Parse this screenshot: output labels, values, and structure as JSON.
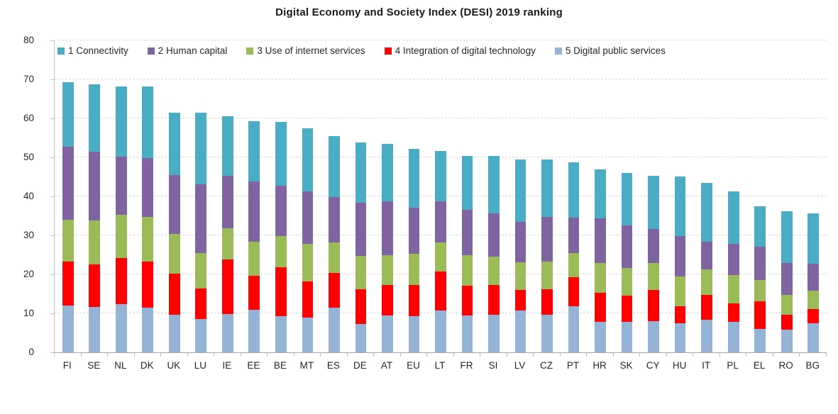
{
  "title": "Digital Economy and Society Index (DESI) 2019 ranking",
  "colors": {
    "connectivity": "#4BACC6",
    "human_capital": "#8064A2",
    "use_of_internet_services": "#9BBB59",
    "integration_of_digital_technology": "#FF0000",
    "digital_public_services": "#95B3D7",
    "gridline": "#D9D9D9",
    "axis_line": "#A6A6A6",
    "text": "#262626"
  },
  "chart_data": {
    "type": "bar",
    "stacked": true,
    "title": "Digital Economy and Society Index (DESI) 2019 ranking",
    "xlabel": "",
    "ylabel": "",
    "ylim": [
      0,
      80
    ],
    "yticks": [
      0,
      10,
      20,
      30,
      40,
      50,
      60,
      70,
      80
    ],
    "grid": "horizontal-dashed",
    "legend_position": "top",
    "categories": [
      "FI",
      "SE",
      "NL",
      "DK",
      "UK",
      "LU",
      "IE",
      "EE",
      "BE",
      "MT",
      "ES",
      "DE",
      "AT",
      "EU",
      "LT",
      "FR",
      "SI",
      "LV",
      "CZ",
      "PT",
      "HR",
      "SK",
      "CY",
      "HU",
      "IT",
      "PL",
      "EL",
      "RO",
      "BG"
    ],
    "series": [
      {
        "name": "1 Connectivity",
        "color": "#4BACC6",
        "values": [
          16.5,
          17.2,
          18.0,
          18.3,
          16.0,
          18.5,
          15.3,
          15.4,
          16.2,
          16.2,
          15.7,
          15.4,
          14.8,
          15.1,
          12.8,
          13.9,
          14.8,
          16.1,
          14.8,
          14.1,
          12.6,
          13.3,
          13.7,
          15.2,
          15.0,
          13.4,
          10.3,
          13.3,
          12.9
        ]
      },
      {
        "name": "2 Human capital",
        "color": "#8064A2",
        "values": [
          18.8,
          17.7,
          15.0,
          15.0,
          15.2,
          17.5,
          13.3,
          15.5,
          12.9,
          13.4,
          11.6,
          13.6,
          13.8,
          11.8,
          10.6,
          11.6,
          11.0,
          10.3,
          11.4,
          9.2,
          11.4,
          10.9,
          8.7,
          10.4,
          7.1,
          8.1,
          8.7,
          8.1,
          7.0
        ]
      },
      {
        "name": "3 Use of internet services",
        "color": "#9BBB59",
        "values": [
          10.7,
          11.2,
          11.1,
          11.5,
          10.2,
          9.1,
          8.0,
          8.8,
          8.0,
          9.7,
          7.8,
          8.7,
          7.7,
          7.9,
          7.4,
          7.9,
          7.3,
          7.1,
          7.1,
          6.2,
          7.6,
          7.2,
          6.8,
          7.6,
          6.5,
          7.3,
          5.4,
          5.2,
          4.7
        ]
      },
      {
        "name": "4 Integration of digital technology",
        "color": "#FF0000",
        "values": [
          11.3,
          11.0,
          11.8,
          11.9,
          10.5,
          7.9,
          14.0,
          8.6,
          12.6,
          9.3,
          8.9,
          8.9,
          7.7,
          8.0,
          10.0,
          7.5,
          7.7,
          5.3,
          6.6,
          7.3,
          7.5,
          6.7,
          8.0,
          4.4,
          6.4,
          4.7,
          7.0,
          3.7,
          3.6
        ]
      },
      {
        "name": "5 Digital public services",
        "color": "#95B3D7",
        "values": [
          12.0,
          11.6,
          12.3,
          11.4,
          9.6,
          8.5,
          9.9,
          11.0,
          9.3,
          8.9,
          11.5,
          7.2,
          9.5,
          9.3,
          10.8,
          9.5,
          9.6,
          10.7,
          9.6,
          11.9,
          7.8,
          7.8,
          8.1,
          7.5,
          8.4,
          7.8,
          6.1,
          5.9,
          7.5
        ]
      }
    ],
    "stack_order_bottom_to_top": [
      "5 Digital public services",
      "4 Integration of digital technology",
      "3 Use of internet services",
      "2 Human capital",
      "1 Connectivity"
    ],
    "totals": [
      69.3,
      68.7,
      68.2,
      68.1,
      61.5,
      61.5,
      60.5,
      59.3,
      59.0,
      57.5,
      55.5,
      53.8,
      53.5,
      52.1,
      51.6,
      50.4,
      50.4,
      49.5,
      49.5,
      48.7,
      46.9,
      45.9,
      45.3,
      45.1,
      43.4,
      41.3,
      37.5,
      36.2,
      35.7
    ]
  }
}
